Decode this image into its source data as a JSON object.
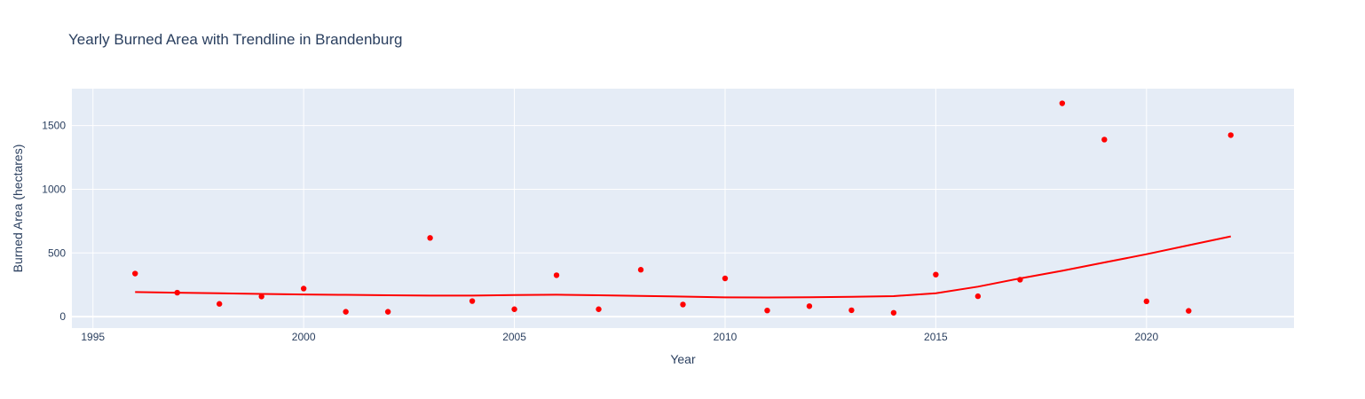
{
  "chart_data": {
    "type": "scatter",
    "title": "Yearly Burned Area with Trendline in Brandenburg",
    "xlabel": "Year",
    "ylabel": "Burned Area (hectares)",
    "xlim": [
      1994.5,
      2023.5
    ],
    "ylim": [
      -90,
      1790
    ],
    "x_ticks": [
      1995,
      2000,
      2005,
      2010,
      2015,
      2020
    ],
    "y_ticks": [
      0,
      500,
      1000,
      1500
    ],
    "grid": true,
    "legend": "none",
    "colors": {
      "background": "#e5ecf6",
      "grid": "#ffffff",
      "points": "#ff0000",
      "trendline": "#ff0000",
      "text": "#2a3f5f"
    },
    "series": [
      {
        "mode": "markers",
        "x": [
          1996,
          1997,
          1998,
          1999,
          2000,
          2001,
          2002,
          2003,
          2004,
          2005,
          2006,
          2007,
          2008,
          2009,
          2010,
          2011,
          2012,
          2013,
          2014,
          2015,
          2016,
          2017,
          2018,
          2019,
          2020,
          2021,
          2022
        ],
        "values": [
          338,
          188,
          100,
          158,
          220,
          38,
          38,
          618,
          122,
          58,
          325,
          58,
          368,
          95,
          300,
          48,
          82,
          50,
          30,
          330,
          160,
          290,
          1675,
          1390,
          120,
          45,
          1425
        ]
      },
      {
        "mode": "lines",
        "x": [
          1996,
          1997,
          1998,
          1999,
          2000,
          2001,
          2002,
          2003,
          2004,
          2005,
          2006,
          2007,
          2008,
          2009,
          2010,
          2011,
          2012,
          2013,
          2014,
          2015,
          2016,
          2017,
          2018,
          2019,
          2020,
          2021,
          2022
        ],
        "values": [
          193,
          188,
          183,
          178,
          174,
          171,
          168,
          165,
          165,
          169,
          172,
          168,
          162,
          157,
          151,
          150,
          152,
          155,
          161,
          183,
          235,
          300,
          360,
          425,
          490,
          560,
          630
        ]
      }
    ]
  }
}
